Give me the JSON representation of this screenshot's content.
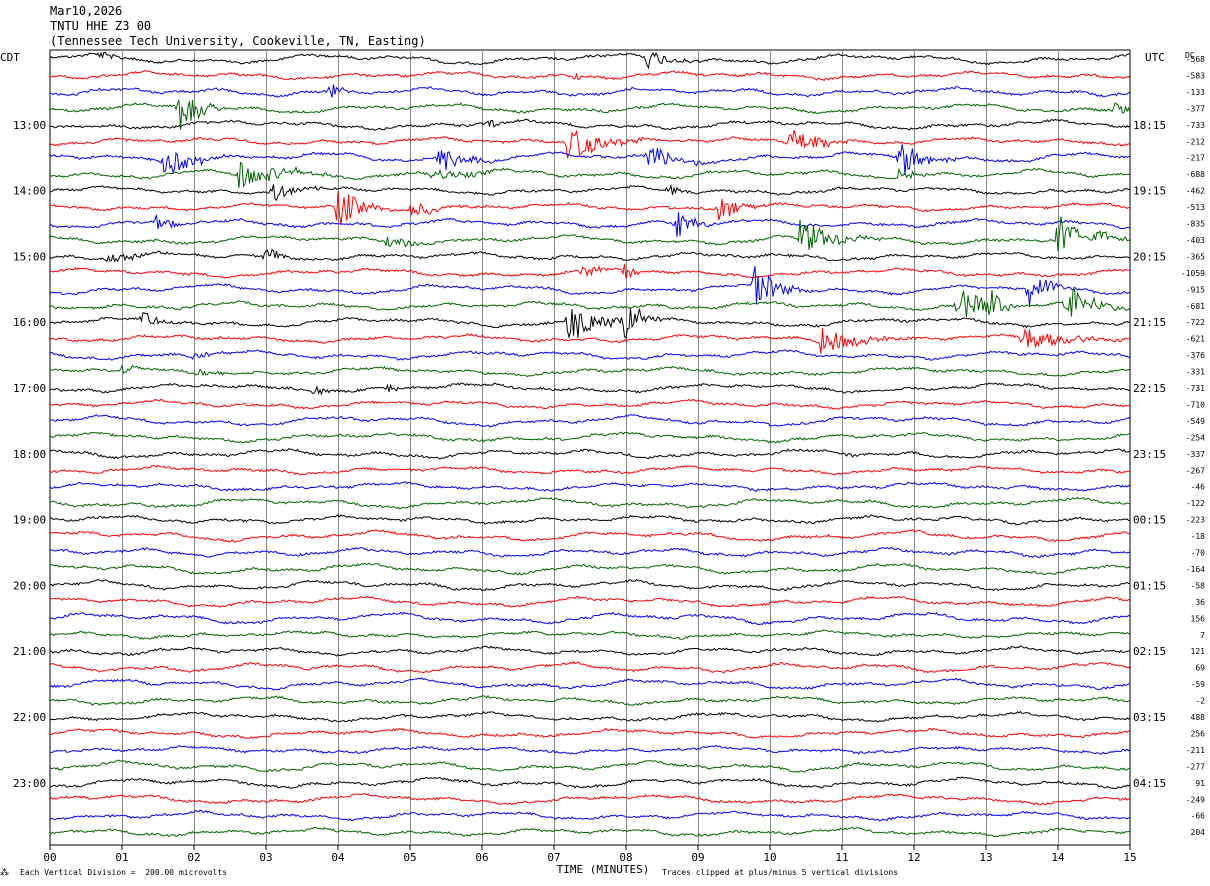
{
  "header": {
    "date": "Mar10,2026",
    "station": "TNTU HHE Z3 00",
    "location": "(Tennessee Tech University, Cookeville, TN, Easting)"
  },
  "footer": {
    "logo": "⁂",
    "division_note": "Each Vertical Division =  200.00 microvolts",
    "clip_note": "Traces clipped at plus/minus 5 vertical divisions"
  },
  "colors": [
    "#000000",
    "#ff0000",
    "#0000ff",
    "#006400"
  ],
  "chart_data": {
    "type": "line",
    "xlabel": "TIME (MINUTES)",
    "left_axis_label": "CDT",
    "right_axis_label": "UTC",
    "dc_label": "DC",
    "xlim": [
      0,
      15
    ],
    "x_ticks": [
      "00",
      "01",
      "02",
      "03",
      "04",
      "05",
      "06",
      "07",
      "08",
      "09",
      "10",
      "11",
      "12",
      "13",
      "14",
      "15"
    ],
    "left_hour_labels": [
      "13:00",
      "14:00",
      "15:00",
      "16:00",
      "17:00",
      "18:00",
      "19:00",
      "20:00",
      "21:00",
      "22:00",
      "23:00"
    ],
    "right_hour_labels": [
      "18:15",
      "19:15",
      "20:15",
      "21:15",
      "22:15",
      "23:15",
      "00:15",
      "01:15",
      "02:15",
      "03:15",
      "04:15"
    ],
    "dc_offsets": [
      -568,
      -583,
      -133,
      -377,
      -733,
      -212,
      -217,
      -688,
      -462,
      -513,
      -835,
      -403,
      -365,
      -1059,
      -915,
      -681,
      -722,
      -621,
      -376,
      -331,
      -731,
      -710,
      -549,
      -254,
      -337,
      -267,
      -46,
      -122,
      -223,
      -18,
      -70,
      -164,
      -58,
      36,
      156,
      7,
      121,
      69,
      -59,
      -2,
      488,
      256,
      -211,
      -277,
      91,
      -249,
      -66,
      204
    ],
    "events": [
      {
        "trace": 0,
        "minute": 8.3,
        "amp": 10,
        "dur": 0.9
      },
      {
        "trace": 0,
        "minute": 0.7,
        "amp": 5,
        "dur": 0.6
      },
      {
        "trace": 1,
        "minute": 7.3,
        "amp": 4,
        "dur": 0.3
      },
      {
        "trace": 2,
        "minute": 3.9,
        "amp": 10,
        "dur": 0.4
      },
      {
        "trace": 3,
        "minute": 1.8,
        "amp": 24,
        "dur": 0.8
      },
      {
        "trace": 3,
        "minute": 14.8,
        "amp": 10,
        "dur": 0.4
      },
      {
        "trace": 4,
        "minute": 6.1,
        "amp": 6,
        "dur": 0.4
      },
      {
        "trace": 5,
        "minute": 7.2,
        "amp": 18,
        "dur": 1.2
      },
      {
        "trace": 5,
        "minute": 10.3,
        "amp": 18,
        "dur": 1.0
      },
      {
        "trace": 6,
        "minute": 1.6,
        "amp": 16,
        "dur": 0.9
      },
      {
        "trace": 6,
        "minute": 5.4,
        "amp": 16,
        "dur": 0.9
      },
      {
        "trace": 6,
        "minute": 8.3,
        "amp": 16,
        "dur": 1.0
      },
      {
        "trace": 6,
        "minute": 11.8,
        "amp": 20,
        "dur": 0.9
      },
      {
        "trace": 7,
        "minute": 2.6,
        "amp": 16,
        "dur": 1.4
      },
      {
        "trace": 7,
        "minute": 5.3,
        "amp": 6,
        "dur": 1.5
      },
      {
        "trace": 7,
        "minute": 11.8,
        "amp": 8,
        "dur": 0.6
      },
      {
        "trace": 8,
        "minute": 3.1,
        "amp": 10,
        "dur": 0.7
      },
      {
        "trace": 8,
        "minute": 8.6,
        "amp": 6,
        "dur": 0.5
      },
      {
        "trace": 9,
        "minute": 4.0,
        "amp": 22,
        "dur": 0.8
      },
      {
        "trace": 9,
        "minute": 5.0,
        "amp": 10,
        "dur": 0.8
      },
      {
        "trace": 9,
        "minute": 9.3,
        "amp": 14,
        "dur": 0.7
      },
      {
        "trace": 10,
        "minute": 1.5,
        "amp": 12,
        "dur": 0.4
      },
      {
        "trace": 10,
        "minute": 8.7,
        "amp": 16,
        "dur": 0.6
      },
      {
        "trace": 11,
        "minute": 4.7,
        "amp": 8,
        "dur": 0.7
      },
      {
        "trace": 11,
        "minute": 10.4,
        "amp": 20,
        "dur": 1.2
      },
      {
        "trace": 11,
        "minute": 14.0,
        "amp": 24,
        "dur": 1.0
      },
      {
        "trace": 12,
        "minute": 0.8,
        "amp": 6,
        "dur": 1.2
      },
      {
        "trace": 12,
        "minute": 3.0,
        "amp": 10,
        "dur": 0.5
      },
      {
        "trace": 13,
        "minute": 7.4,
        "amp": 8,
        "dur": 0.6
      },
      {
        "trace": 13,
        "minute": 8.0,
        "amp": 12,
        "dur": 0.3
      },
      {
        "trace": 14,
        "minute": 9.8,
        "amp": 24,
        "dur": 0.8
      },
      {
        "trace": 14,
        "minute": 13.6,
        "amp": 18,
        "dur": 0.7
      },
      {
        "trace": 15,
        "minute": 12.6,
        "amp": 20,
        "dur": 1.0
      },
      {
        "trace": 15,
        "minute": 13.0,
        "amp": 18,
        "dur": 0.6
      },
      {
        "trace": 15,
        "minute": 14.1,
        "amp": 20,
        "dur": 1.0
      },
      {
        "trace": 16,
        "minute": 1.3,
        "amp": 8,
        "dur": 0.6
      },
      {
        "trace": 16,
        "minute": 7.2,
        "amp": 20,
        "dur": 1.3
      },
      {
        "trace": 16,
        "minute": 8.0,
        "amp": 24,
        "dur": 0.5
      },
      {
        "trace": 17,
        "minute": 10.7,
        "amp": 14,
        "dur": 1.4
      },
      {
        "trace": 17,
        "minute": 13.5,
        "amp": 14,
        "dur": 1.8
      },
      {
        "trace": 18,
        "minute": 2.0,
        "amp": 6,
        "dur": 0.6
      },
      {
        "trace": 19,
        "minute": 1.0,
        "amp": 6,
        "dur": 0.4
      },
      {
        "trace": 19,
        "minute": 2.1,
        "amp": 10,
        "dur": 0.4
      },
      {
        "trace": 20,
        "minute": 3.7,
        "amp": 6,
        "dur": 0.3
      },
      {
        "trace": 20,
        "minute": 4.7,
        "amp": 6,
        "dur": 0.3
      },
      {
        "trace": 24,
        "minute": 11.1,
        "amp": 3,
        "dur": 0.2
      }
    ]
  }
}
